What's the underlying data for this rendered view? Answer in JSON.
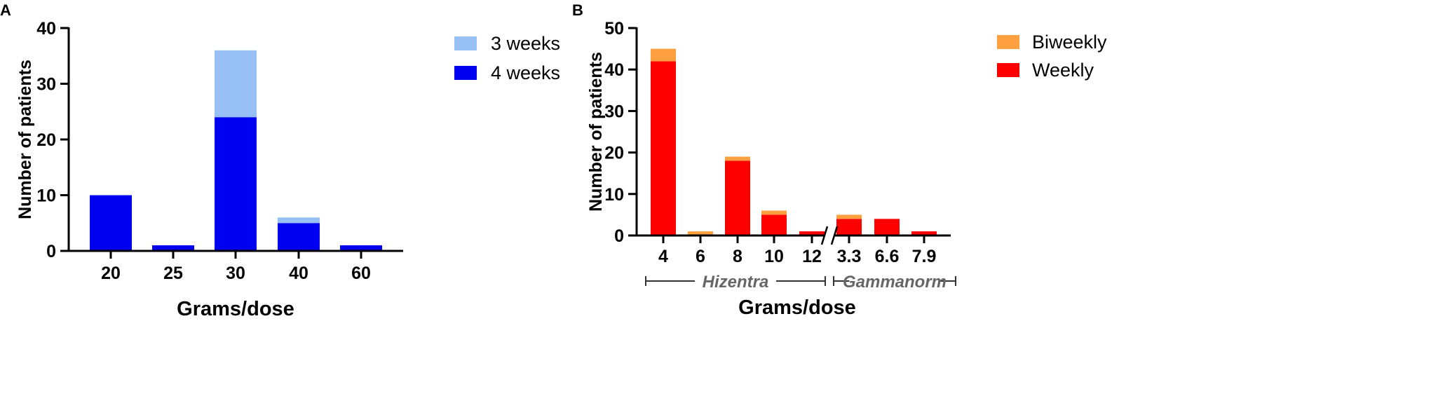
{
  "chart_data": [
    {
      "panel": "A",
      "type": "bar",
      "stacked": true,
      "title": "",
      "xlabel": "Grams/dose",
      "ylabel": "Number of patients",
      "ylim": [
        0,
        40
      ],
      "yticks": [
        0,
        10,
        20,
        30,
        40
      ],
      "categories": [
        "20",
        "25",
        "30",
        "40",
        "60"
      ],
      "series": [
        {
          "name": "4 weeks",
          "color": "#0000F0",
          "values": [
            10,
            1,
            24,
            5,
            1
          ]
        },
        {
          "name": "3 weeks",
          "color": "#97C0F7",
          "values": [
            0,
            0,
            12,
            1,
            0
          ]
        }
      ],
      "legend": [
        {
          "label": "3 weeks",
          "color": "#97C0F7"
        },
        {
          "label": "4 weeks",
          "color": "#0000F0"
        }
      ],
      "legend_position": "right"
    },
    {
      "panel": "B",
      "type": "bar",
      "stacked": true,
      "title": "",
      "xlabel": "Grams/dose",
      "ylabel": "Number of patients",
      "ylim": [
        0,
        50
      ],
      "yticks": [
        0,
        10,
        20,
        30,
        40,
        50
      ],
      "categories": [
        "4",
        "6",
        "8",
        "10",
        "12",
        "3.3",
        "6.6",
        "7.9"
      ],
      "axis_break_after_index": 4,
      "series": [
        {
          "name": "Weekly",
          "color": "#FF0000",
          "values": [
            42,
            0,
            18,
            5,
            1,
            4,
            4,
            1
          ]
        },
        {
          "name": "Biweekly",
          "color": "#FFA040",
          "values": [
            3,
            1,
            1,
            1,
            0,
            1,
            0,
            0
          ]
        }
      ],
      "groups": [
        {
          "label": "Hizentra",
          "start": 0,
          "end": 4
        },
        {
          "label": "Gammanorm",
          "start": 5,
          "end": 7
        }
      ],
      "legend": [
        {
          "label": "Biweekly",
          "color": "#FFA040"
        },
        {
          "label": "Weekly",
          "color": "#FF0000"
        }
      ],
      "legend_position": "right"
    }
  ]
}
